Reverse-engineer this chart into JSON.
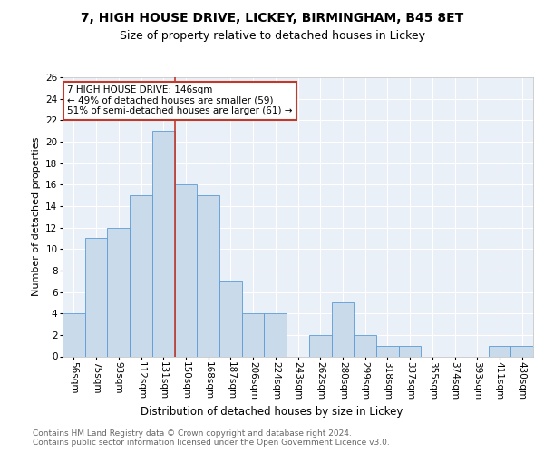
{
  "title1": "7, HIGH HOUSE DRIVE, LICKEY, BIRMINGHAM, B45 8ET",
  "title2": "Size of property relative to detached houses in Lickey",
  "xlabel": "Distribution of detached houses by size in Lickey",
  "ylabel": "Number of detached properties",
  "bins": [
    "56sqm",
    "75sqm",
    "93sqm",
    "112sqm",
    "131sqm",
    "150sqm",
    "168sqm",
    "187sqm",
    "206sqm",
    "224sqm",
    "243sqm",
    "262sqm",
    "280sqm",
    "299sqm",
    "318sqm",
    "337sqm",
    "355sqm",
    "374sqm",
    "393sqm",
    "411sqm",
    "430sqm"
  ],
  "counts": [
    4,
    11,
    12,
    15,
    21,
    16,
    15,
    7,
    4,
    4,
    0,
    2,
    5,
    2,
    1,
    1,
    0,
    0,
    0,
    1,
    1
  ],
  "bar_color": "#c9daea",
  "bar_edge_color": "#5b9bd5",
  "vline_color": "#c0392b",
  "annotation_text": "7 HIGH HOUSE DRIVE: 146sqm\n← 49% of detached houses are smaller (59)\n51% of semi-detached houses are larger (61) →",
  "annotation_box_color": "white",
  "annotation_box_edge_color": "#c0392b",
  "ylim": [
    0,
    26
  ],
  "yticks": [
    0,
    2,
    4,
    6,
    8,
    10,
    12,
    14,
    16,
    18,
    20,
    22,
    24,
    26
  ],
  "footer": "Contains HM Land Registry data © Crown copyright and database right 2024.\nContains public sector information licensed under the Open Government Licence v3.0.",
  "bg_color": "#eaf0f8",
  "fig_bg_color": "#ffffff",
  "grid_color": "#ffffff",
  "title1_fontsize": 10,
  "title2_fontsize": 9,
  "xlabel_fontsize": 8.5,
  "ylabel_fontsize": 8,
  "tick_fontsize": 7.5,
  "annotation_fontsize": 7.5,
  "footer_fontsize": 6.5,
  "vline_bin_index": 4.5
}
